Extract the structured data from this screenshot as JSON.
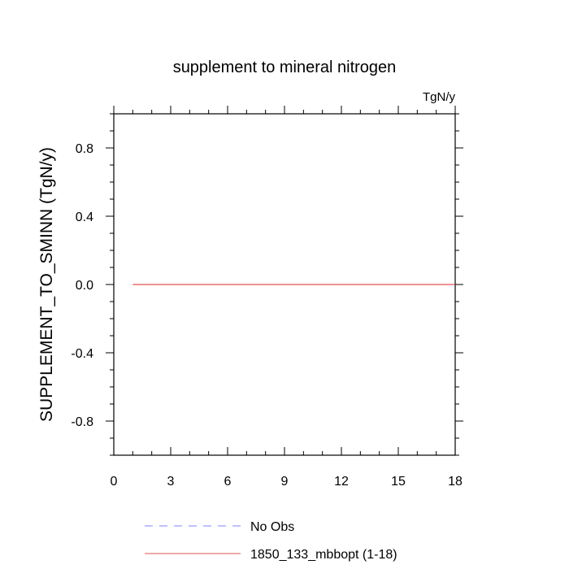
{
  "chart_data": {
    "type": "line",
    "title": "supplement to mineral nitrogen",
    "units_label": "TgN/y",
    "ylabel": "SUPPLEMENT_TO_SMINN  (TgN/y)",
    "xlabel": "",
    "xlim": [
      0,
      18
    ],
    "ylim": [
      -1.0,
      1.0
    ],
    "xticks": [
      0,
      3,
      6,
      9,
      12,
      15,
      18
    ],
    "xtick_labels": [
      "0",
      "3",
      "6",
      "9",
      "12",
      "15",
      "18"
    ],
    "yticks": [
      -0.8,
      -0.4,
      0.0,
      0.4,
      0.8
    ],
    "ytick_labels": [
      "-0.8",
      "-0.4",
      "0.0",
      "0.4",
      "0.8"
    ],
    "grid": false,
    "legend_position": "bottom",
    "series": [
      {
        "name": "No Obs",
        "color": "#8080ff",
        "dash": "dashed",
        "x": [],
        "y": []
      },
      {
        "name": "1850_133_mbbopt (1-18)",
        "color": "#e05050",
        "dash": "solid",
        "x": [
          1,
          2,
          3,
          4,
          5,
          6,
          7,
          8,
          9,
          10,
          11,
          12,
          13,
          14,
          15,
          16,
          17,
          18
        ],
        "y": [
          0,
          0,
          0,
          0,
          0,
          0,
          0,
          0,
          0,
          0,
          0,
          0,
          0,
          0,
          0,
          0,
          0,
          0
        ]
      }
    ]
  }
}
